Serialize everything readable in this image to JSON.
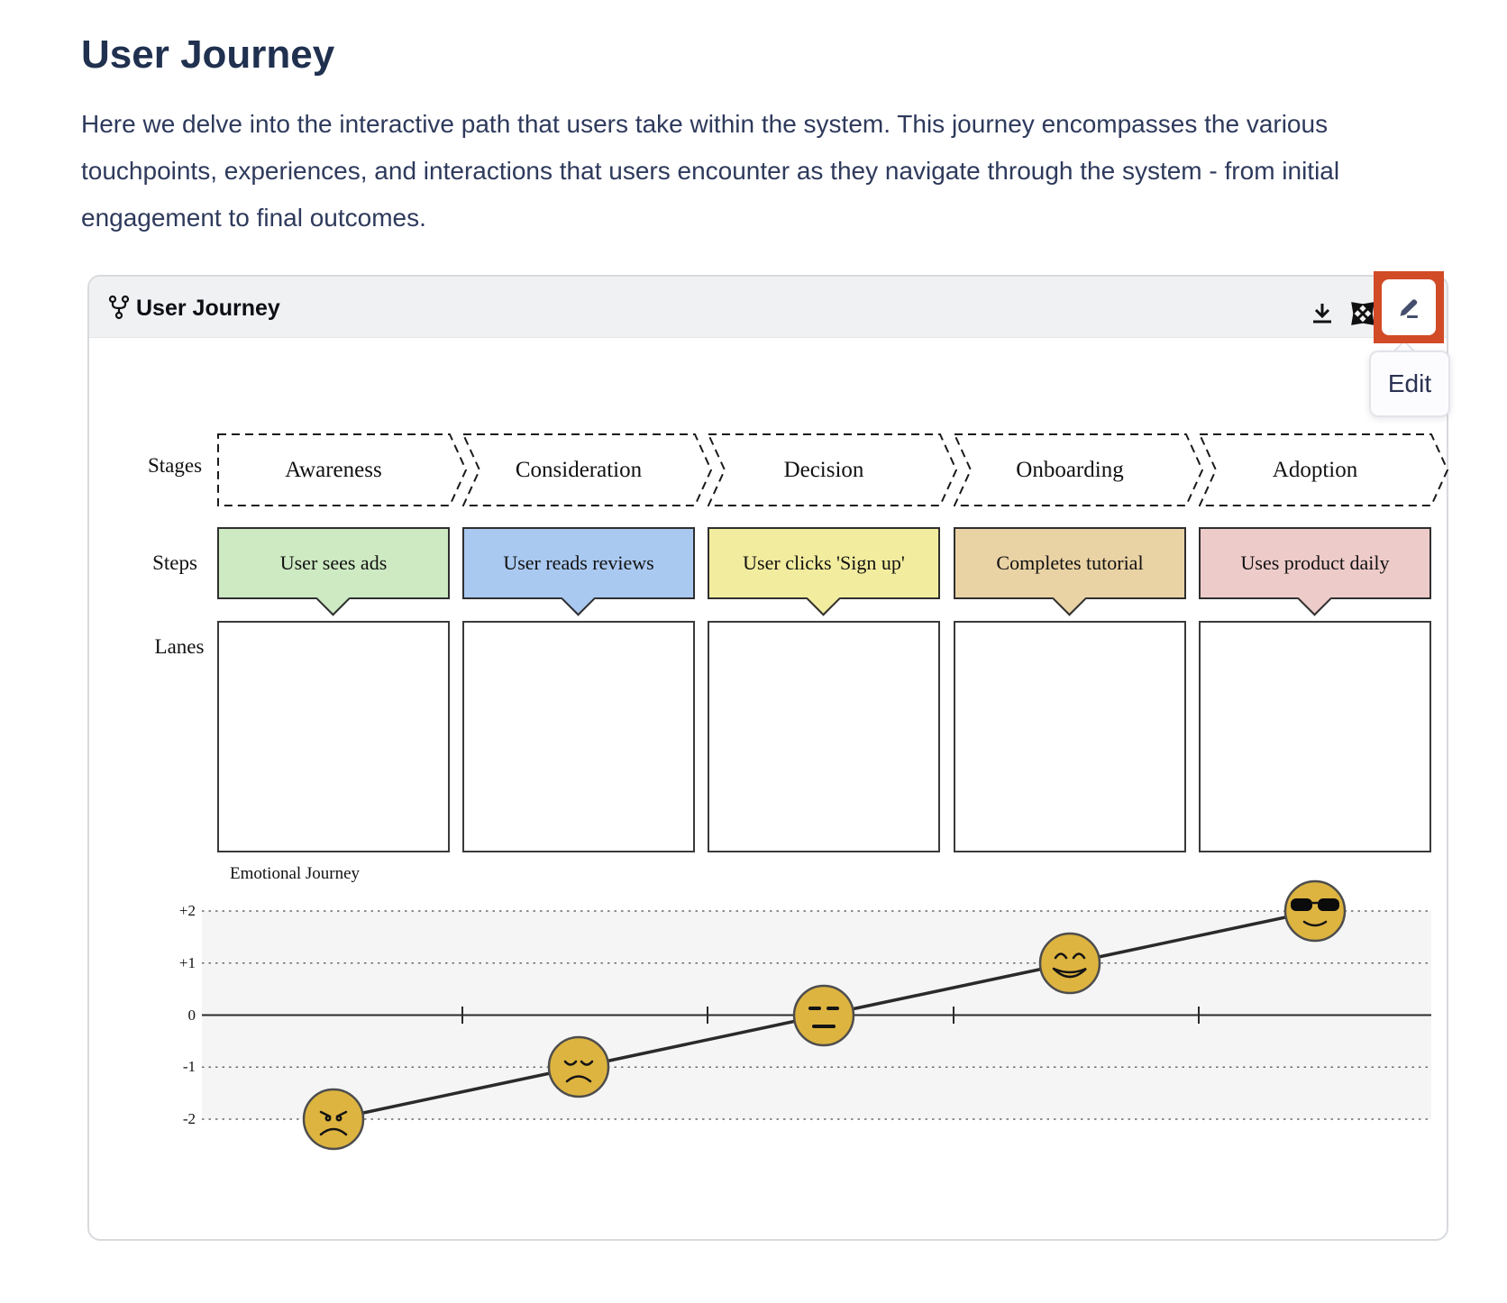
{
  "page": {
    "title": "User Journey",
    "description": "Here we delve into the interactive path that users take within the system. This journey encompasses the various touchpoints, experiences, and interactions that users encounter as they navigate through the system - from initial engagement to final outcomes."
  },
  "panel": {
    "title": "User Journey",
    "toolbar": {
      "download_icon": "download-icon",
      "expand_icon": "expand-icon",
      "edit_icon": "pencil-icon",
      "edit_tooltip": "Edit",
      "highlight_color": "#d14b27"
    }
  },
  "diagram": {
    "row_labels": {
      "stages": "Stages",
      "steps": "Steps",
      "lanes": "Lanes"
    },
    "stages": [
      "Awareness",
      "Consideration",
      "Decision",
      "Onboarding",
      "Adoption"
    ],
    "steps": [
      {
        "label": "User sees ads",
        "color": "#cdeac2"
      },
      {
        "label": "User reads reviews",
        "color": "#aac9f1"
      },
      {
        "label": "User clicks 'Sign up'",
        "color": "#f2ec9e"
      },
      {
        "label": "Completes tutorial",
        "color": "#e9d2a4"
      },
      {
        "label": "Uses product daily",
        "color": "#edcbc9"
      }
    ],
    "lanes_count": 5
  },
  "chart_data": {
    "type": "line",
    "title": "Emotional Journey",
    "categories": [
      "Awareness",
      "Consideration",
      "Decision",
      "Onboarding",
      "Adoption"
    ],
    "values": [
      -2,
      -1,
      0,
      1,
      2
    ],
    "emotions": [
      "angry",
      "sad",
      "neutral",
      "happy",
      "cool"
    ],
    "ylabel": "",
    "ylim": [
      -2,
      2
    ],
    "ytick_labels": [
      "+2",
      "+1",
      "0",
      "-1",
      "-2"
    ],
    "grid": "dotted horizontal",
    "face_color": "#deb440",
    "line_color": "#2a2a2a"
  }
}
